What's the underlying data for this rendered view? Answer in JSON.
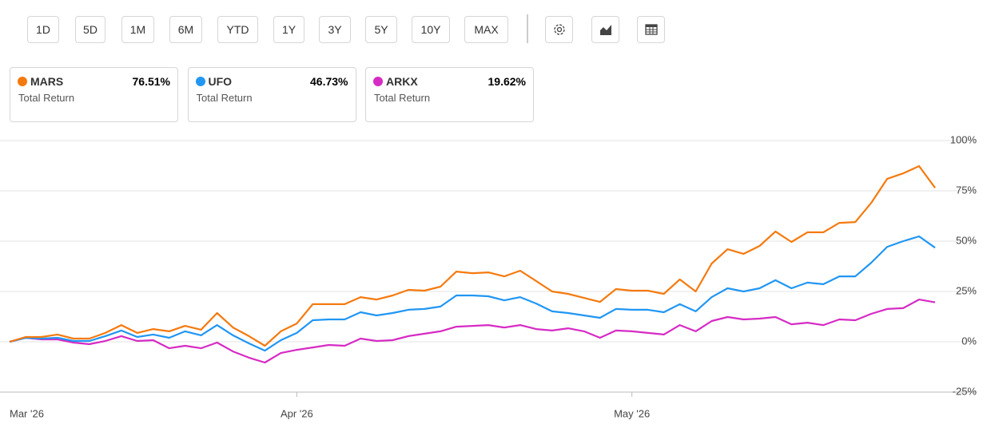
{
  "toolbar": {
    "ranges": [
      "1D",
      "5D",
      "1M",
      "6M",
      "YTD",
      "1Y",
      "3Y",
      "5Y",
      "10Y",
      "MAX"
    ]
  },
  "legend_cards": [
    {
      "subtitle": "Total Return",
      "value": "76.51%"
    },
    {
      "subtitle": "Total Return",
      "value": "46.73%"
    },
    {
      "subtitle": "Total Return",
      "value": "19.62%"
    }
  ],
  "chart_data": {
    "type": "line",
    "x": [
      "Mar '26",
      null,
      null,
      null,
      null,
      null,
      null,
      null,
      null,
      null,
      null,
      null,
      null,
      null,
      null,
      null,
      null,
      null,
      "Apr '26",
      null,
      null,
      null,
      null,
      null,
      null,
      null,
      null,
      null,
      null,
      null,
      null,
      null,
      null,
      null,
      null,
      null,
      null,
      null,
      null,
      "May '26",
      null,
      null,
      null,
      null,
      null,
      null,
      null,
      null,
      null,
      null,
      null,
      null,
      null,
      null,
      null,
      null,
      null,
      null,
      null
    ],
    "series": [
      {
        "name": "MARS",
        "color": "#f47a0f",
        "values": [
          0,
          2.4,
          2.4,
          3.6,
          1.6,
          1.6,
          4.4,
          8.3,
          4.4,
          6.3,
          5.2,
          7.9,
          6,
          14.3,
          7.1,
          2.8,
          -2,
          5.2,
          9.1,
          18.7,
          18.7,
          18.7,
          22.2,
          21,
          23,
          25.8,
          25.4,
          27.4,
          34.9,
          34.1,
          34.5,
          32.5,
          35.3,
          30.2,
          25,
          23.8,
          21.8,
          19.8,
          26.2,
          25.4,
          25.4,
          23.8,
          31,
          25,
          38.9,
          46,
          43.7,
          47.6,
          54.8,
          49.6,
          54.4,
          54.4,
          59.1,
          59.5,
          69,
          81,
          83.7,
          87.3,
          76.51
        ]
      },
      {
        "name": "UFO",
        "color": "#2196f3",
        "values": [
          0,
          2,
          1.6,
          2,
          0.4,
          0.4,
          2.8,
          5.6,
          2.4,
          3.6,
          2,
          5.2,
          3.2,
          8.3,
          3.2,
          -0.8,
          -4.4,
          0.8,
          4.4,
          10.7,
          11.1,
          11.1,
          14.7,
          13.1,
          14.3,
          15.9,
          16.3,
          17.5,
          23,
          23,
          22.6,
          20.6,
          22.2,
          19,
          15.1,
          14.3,
          13.1,
          11.9,
          16.3,
          15.9,
          15.9,
          14.7,
          18.7,
          15.1,
          22.2,
          26.6,
          25,
          26.6,
          30.6,
          26.6,
          29.4,
          28.6,
          32.5,
          32.5,
          39.3,
          47.2,
          50,
          52.4,
          46.73
        ]
      },
      {
        "name": "ARKX",
        "color": "#d62bc4",
        "values": [
          0,
          2,
          1.2,
          1.2,
          -0.4,
          -1.2,
          0.4,
          2.8,
          0.4,
          0.8,
          -3.2,
          -2,
          -3.2,
          -0.4,
          -4.8,
          -7.9,
          -10.3,
          -5.6,
          -4,
          -2.8,
          -1.6,
          -2,
          1.6,
          0.4,
          0.8,
          2.8,
          4,
          5.2,
          7.5,
          7.9,
          8.3,
          7.1,
          8.3,
          6.3,
          5.6,
          6.7,
          5.2,
          2,
          5.6,
          5.2,
          4.4,
          3.6,
          8.3,
          5.2,
          10.3,
          12.3,
          11.1,
          11.5,
          12.3,
          8.7,
          9.5,
          8.3,
          11.1,
          10.7,
          13.9,
          16.3,
          16.7,
          21,
          19.62
        ]
      }
    ],
    "ylim": [
      -25,
      100
    ],
    "yticks": [
      {
        "value": -25,
        "label": "-25%"
      },
      {
        "value": 0,
        "label": "0%"
      },
      {
        "value": 25,
        "label": "25%"
      },
      {
        "value": 50,
        "label": "50%"
      },
      {
        "value": 75,
        "label": "75%"
      },
      {
        "value": 100,
        "label": "100%"
      }
    ],
    "grid": true
  }
}
